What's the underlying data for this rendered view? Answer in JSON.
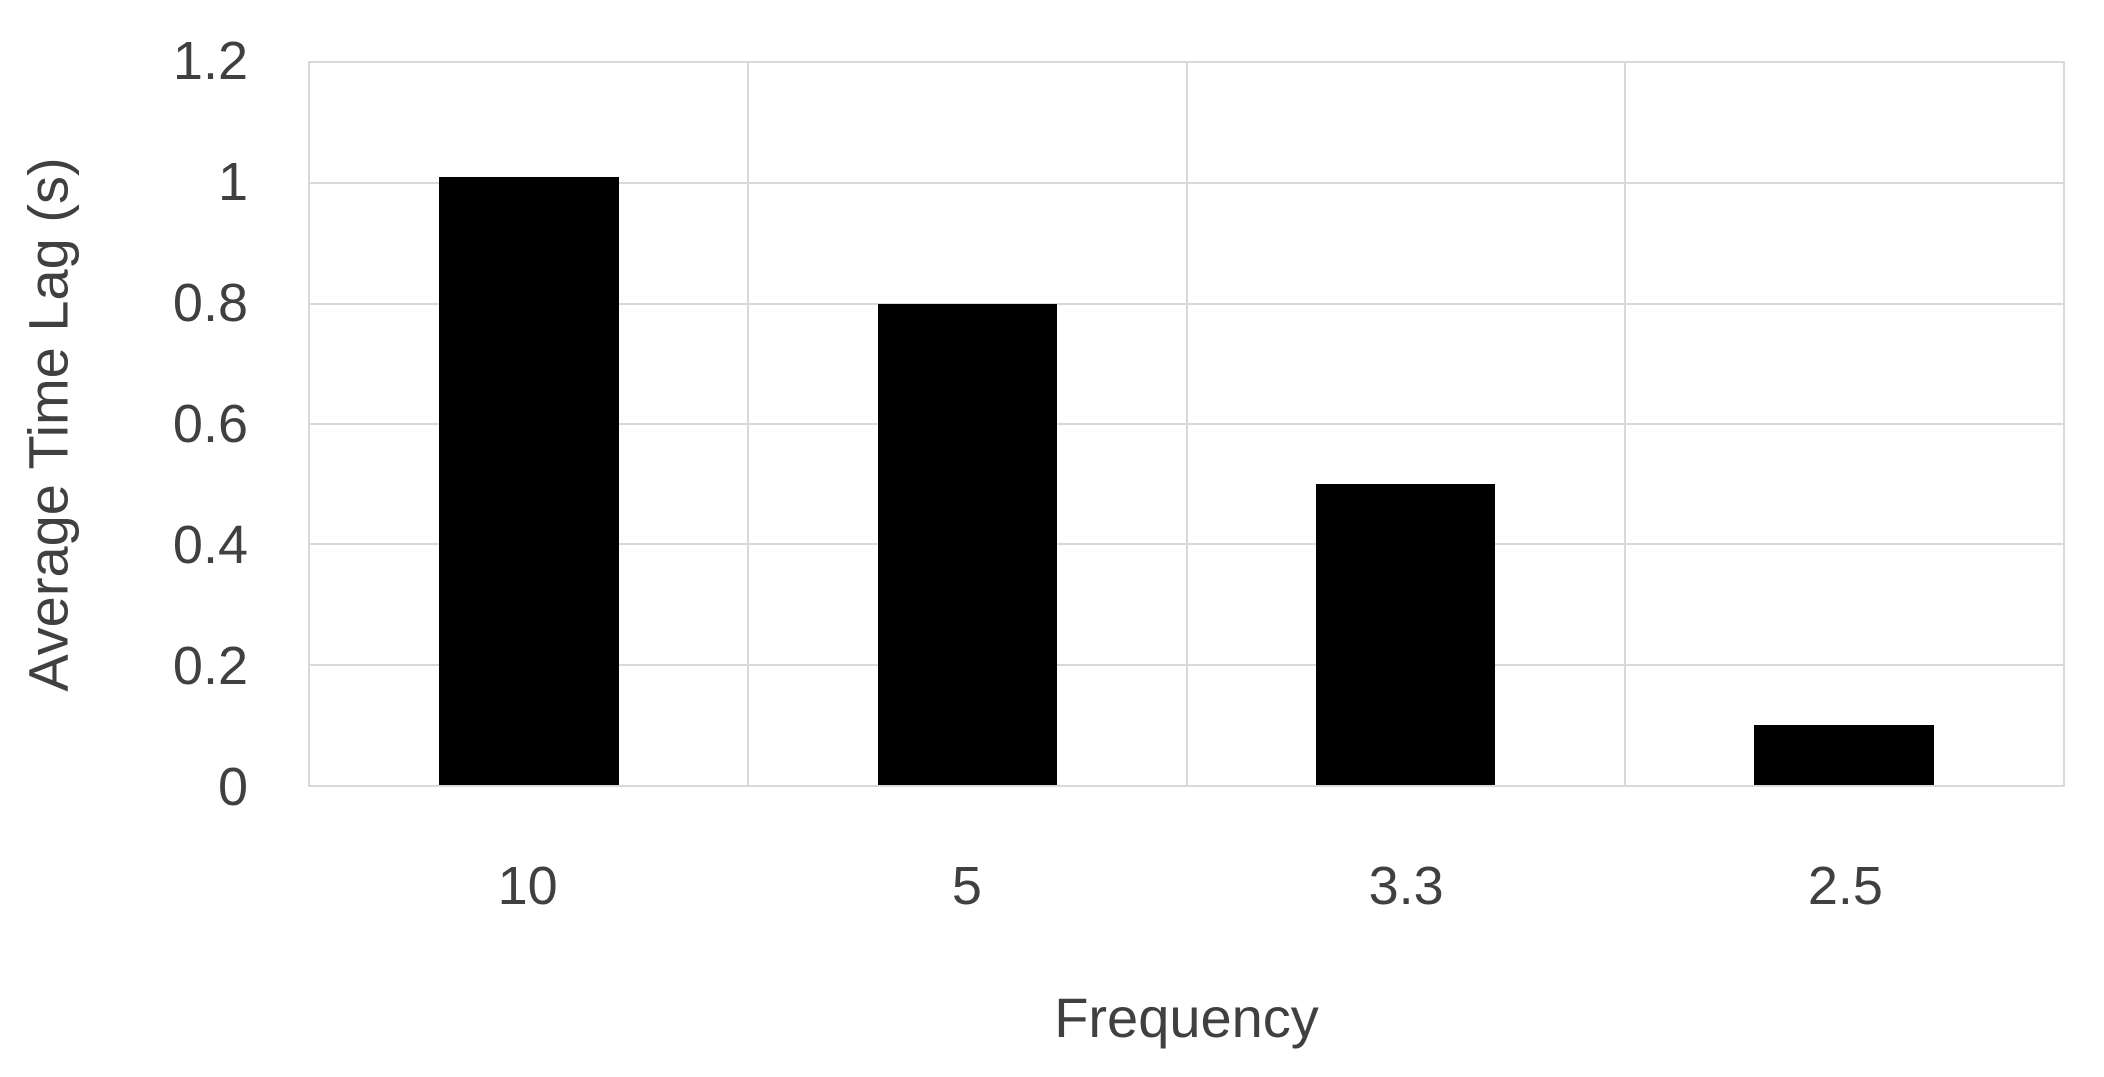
{
  "chart_data": {
    "type": "bar",
    "categories": [
      "10",
      "5",
      "3.3",
      "2.5"
    ],
    "values": [
      1.01,
      0.8,
      0.5,
      0.1
    ],
    "xlabel": "Frequency",
    "ylabel": "Average Time Lag (s)",
    "ylim": [
      0,
      1.2
    ],
    "yticks": [
      "0",
      "0.2",
      "0.4",
      "0.6",
      "0.8",
      "1",
      "1.2"
    ],
    "grid": "horizontal and vertical gridlines, full plot border",
    "legend": "none",
    "bar_color": "#000000",
    "gridline_color": "#d9d9d9",
    "text_color": "#404040",
    "background_color": "#ffffff",
    "bar_width_fraction_of_category": 0.41
  }
}
